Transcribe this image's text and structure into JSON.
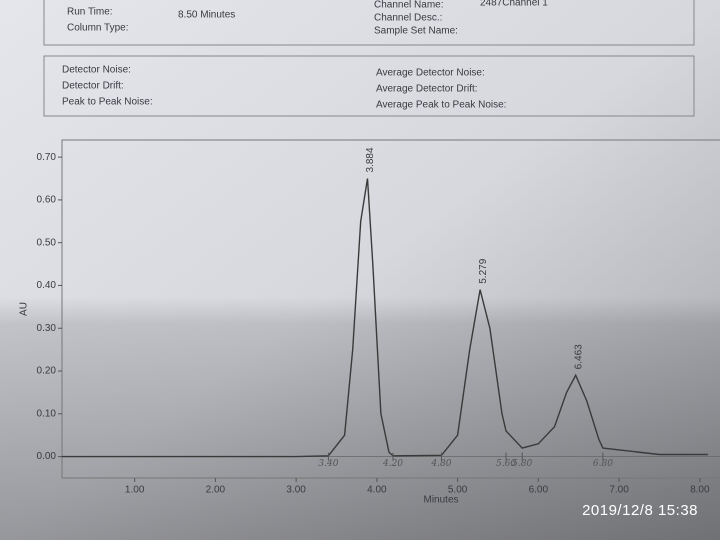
{
  "header": {
    "left_top": [
      "Run Time:",
      "Column Type:"
    ],
    "left_top_values": [
      "8.50 Minutes"
    ],
    "right_top": [
      "Channel Name:",
      "Channel Desc.:",
      "Sample Set Name:"
    ],
    "right_top_values": [
      "2487Channel 1"
    ],
    "left_noise": [
      "Detector Noise:",
      "Detector Drift:",
      "Peak to Peak Noise:"
    ],
    "right_noise": [
      "Average Detector Noise:",
      "Average Detector Drift:",
      "Average Peak to Peak Noise:"
    ]
  },
  "timestamp": "2019/12/8  15:38",
  "chart_data": {
    "type": "line",
    "xlabel": "Minutes",
    "ylabel": "AU",
    "color": "#3a3a3a",
    "x": [
      0.1,
      1,
      2,
      3,
      3.4,
      3.6,
      3.7,
      3.8,
      3.884,
      3.95,
      4.05,
      4.15,
      4.2,
      4.8,
      5.0,
      5.15,
      5.279,
      5.4,
      5.55,
      5.6,
      5.8,
      6.0,
      6.2,
      6.35,
      6.463,
      6.6,
      6.75,
      6.8,
      7.5,
      8.1
    ],
    "values": [
      0,
      0,
      0,
      0,
      0.002,
      0.05,
      0.25,
      0.55,
      0.65,
      0.45,
      0.1,
      0.01,
      0.002,
      0.003,
      0.05,
      0.25,
      0.39,
      0.3,
      0.1,
      0.06,
      0.02,
      0.03,
      0.07,
      0.15,
      0.19,
      0.13,
      0.04,
      0.02,
      0.005,
      0.005
    ],
    "peak_labels": [
      3.884,
      5.279,
      6.463
    ],
    "annotations": [
      {
        "value": 3.4,
        "label": "3.40"
      },
      {
        "value": 4.2,
        "label": "4.20"
      },
      {
        "value": 4.8,
        "label": "4.80"
      },
      {
        "value": 5.6,
        "label": "5.60"
      },
      {
        "value": 5.8,
        "label": "5.80"
      },
      {
        "value": 6.8,
        "label": "6.80"
      }
    ],
    "xlim": [
      0.1,
      8.25
    ],
    "ylim": [
      -0.05,
      0.74
    ],
    "xticks": [
      {
        "value": 1,
        "label": "1.00"
      },
      {
        "value": 2,
        "label": "2.00"
      },
      {
        "value": 3,
        "label": "3.00"
      },
      {
        "value": 4,
        "label": "4.00"
      },
      {
        "value": 5,
        "label": "5.00"
      },
      {
        "value": 6,
        "label": "6.00"
      },
      {
        "value": 7,
        "label": "7.00"
      },
      {
        "value": 8,
        "label": "8.00"
      }
    ],
    "yticks": [
      {
        "value": 0,
        "label": "0.00"
      },
      {
        "value": 0.1,
        "label": "0.10"
      },
      {
        "value": 0.2,
        "label": "0.20"
      },
      {
        "value": 0.3,
        "label": "0.30"
      },
      {
        "value": 0.4,
        "label": "0.40"
      },
      {
        "value": 0.5,
        "label": "0.50"
      },
      {
        "value": 0.6,
        "label": "0.60"
      },
      {
        "value": 0.7,
        "label": "0.70"
      }
    ]
  }
}
